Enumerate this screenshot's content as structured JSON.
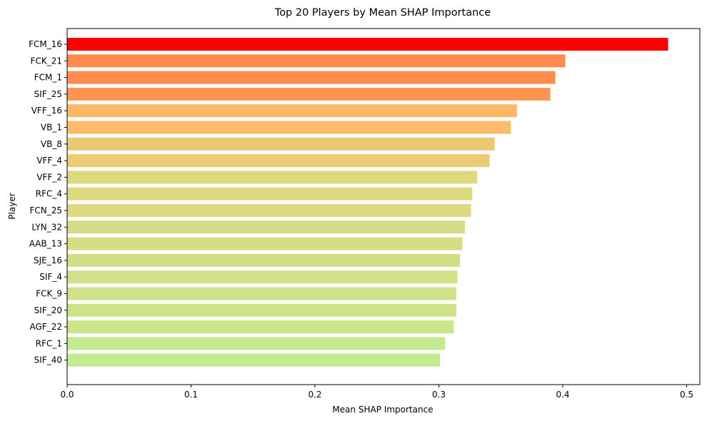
{
  "chart_data": {
    "type": "bar",
    "orientation": "horizontal",
    "title": "Top 20 Players by Mean SHAP Importance",
    "xlabel": "Mean SHAP Importance",
    "ylabel": "Player",
    "xlim": [
      0,
      0.51
    ],
    "xticks": [
      0.0,
      0.1,
      0.2,
      0.3,
      0.4,
      0.5
    ],
    "xtick_labels": [
      "0.0",
      "0.1",
      "0.2",
      "0.3",
      "0.4",
      "0.5"
    ],
    "grid": false,
    "categories": [
      "FCM_16",
      "FCK_21",
      "FCM_1",
      "SIF_25",
      "VFF_16",
      "VB_1",
      "VB_8",
      "VFF_4",
      "VFF_2",
      "RFC_4",
      "FCN_25",
      "LYN_32",
      "AAB_13",
      "SJE_16",
      "SIF_4",
      "FCK_9",
      "SIF_20",
      "AGF_22",
      "RFC_1",
      "SIF_40"
    ],
    "values": [
      0.485,
      0.402,
      0.394,
      0.39,
      0.363,
      0.358,
      0.345,
      0.341,
      0.331,
      0.327,
      0.326,
      0.321,
      0.319,
      0.317,
      0.315,
      0.314,
      0.314,
      0.312,
      0.305,
      0.301
    ],
    "colors": [
      "#ff0000",
      "#ff8a4c",
      "#ff8d4f",
      "#ff9350",
      "#ffb866",
      "#ffbb69",
      "#ecc873",
      "#ebcb74",
      "#ded87e",
      "#dcd97f",
      "#dbda80",
      "#d6dc83",
      "#d4dd84",
      "#d2de86",
      "#d0e087",
      "#cfe288",
      "#cee288",
      "#cce48a",
      "#c5e98d",
      "#c0eb8f"
    ]
  }
}
